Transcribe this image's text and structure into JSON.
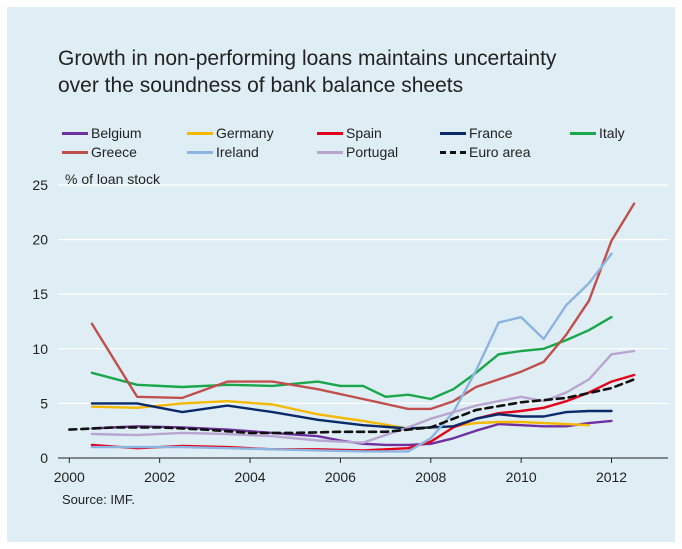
{
  "title_line1": "Growth in non-performing loans maintains uncertainty",
  "title_line2": "over the soundness of bank balance sheets",
  "unit_label": "% of loan stock",
  "source": "Source: IMF.",
  "chart_data": {
    "type": "line",
    "title": "Growth in non-performing loans maintains uncertainty over the soundness of bank balance sheets",
    "ylabel": "% of loan stock",
    "xlim": [
      1999.75,
      2013.25
    ],
    "ylim": [
      0,
      25
    ],
    "xticks": [
      "2000",
      "2002",
      "2004",
      "2006",
      "2008",
      "2010",
      "2012"
    ],
    "xtick_values": [
      2000,
      2002,
      2004,
      2006,
      2008,
      2010,
      2012
    ],
    "yticks": [
      "0",
      "5",
      "10",
      "15",
      "20",
      "25"
    ],
    "ytick_values": [
      0,
      5,
      10,
      15,
      20,
      25
    ],
    "grid": "horizontal",
    "legend_position": "top",
    "series": [
      {
        "name": "Belgium",
        "color": "#7030a0",
        "dash": false,
        "x": [
          2000.5,
          2001.5,
          2002.5,
          2003.5,
          2004.5,
          2005.5,
          2006,
          2006.5,
          2007,
          2007.5,
          2008,
          2008.5,
          2009,
          2009.5,
          2010,
          2010.5,
          2011,
          2011.5,
          2012
        ],
        "y": [
          2.7,
          2.9,
          2.8,
          2.6,
          2.3,
          2.0,
          1.6,
          1.3,
          1.2,
          1.2,
          1.3,
          1.8,
          2.5,
          3.1,
          3.0,
          2.9,
          2.9,
          3.2,
          3.4
        ]
      },
      {
        "name": "Germany",
        "color": "#f5b800",
        "dash": false,
        "x": [
          2000.5,
          2001.5,
          2002.5,
          2003.5,
          2004.5,
          2005.5,
          2006.5,
          2007.5,
          2008,
          2008.5,
          2009,
          2009.5,
          2010,
          2010.5,
          2011,
          2011.5
        ],
        "y": [
          4.7,
          4.6,
          5.0,
          5.2,
          4.9,
          4.0,
          3.4,
          2.7,
          2.8,
          2.9,
          3.2,
          3.3,
          3.3,
          3.2,
          3.1,
          3.0
        ]
      },
      {
        "name": "Spain",
        "color": "#e2001a",
        "dash": false,
        "x": [
          2000.5,
          2001.5,
          2002.5,
          2003.5,
          2004.5,
          2005.5,
          2006.5,
          2007.5,
          2008,
          2008.5,
          2009,
          2009.5,
          2010,
          2010.5,
          2011,
          2011.5,
          2012,
          2012.5
        ],
        "y": [
          1.2,
          0.9,
          1.1,
          1.0,
          0.8,
          0.8,
          0.7,
          0.9,
          1.5,
          2.8,
          3.6,
          4.1,
          4.3,
          4.6,
          5.2,
          6.0,
          7.0,
          7.6
        ]
      },
      {
        "name": "France",
        "color": "#0b2a6a",
        "dash": false,
        "x": [
          2000.5,
          2001.5,
          2002.5,
          2003.5,
          2004.5,
          2005.5,
          2006.5,
          2007.5,
          2008,
          2008.5,
          2009,
          2009.5,
          2010,
          2010.5,
          2011,
          2011.5,
          2012
        ],
        "y": [
          5.0,
          5.0,
          4.2,
          4.8,
          4.2,
          3.5,
          3.0,
          2.7,
          2.8,
          2.9,
          3.6,
          4.0,
          3.8,
          3.8,
          4.2,
          4.3,
          4.3
        ]
      },
      {
        "name": "Italy",
        "color": "#1aa64b",
        "dash": false,
        "x": [
          2000.5,
          2001.5,
          2002.5,
          2003.5,
          2004.5,
          2005,
          2005.5,
          2006,
          2006.5,
          2007,
          2007.5,
          2008,
          2008.5,
          2009,
          2009.5,
          2010,
          2010.5,
          2011,
          2011.5,
          2012
        ],
        "y": [
          7.8,
          6.7,
          6.5,
          6.7,
          6.6,
          6.8,
          7.0,
          6.6,
          6.6,
          5.6,
          5.8,
          5.4,
          6.3,
          7.8,
          9.5,
          9.8,
          10.0,
          10.8,
          11.7,
          12.9
        ]
      },
      {
        "name": "Greece",
        "color": "#c0504d",
        "dash": false,
        "x": [
          2000.5,
          2001.5,
          2002.5,
          2003.5,
          2004.5,
          2005.5,
          2006.5,
          2007.5,
          2008,
          2008.5,
          2009,
          2009.5,
          2010,
          2010.5,
          2011,
          2011.5,
          2012,
          2012.5
        ],
        "y": [
          12.3,
          5.6,
          5.5,
          7.0,
          7.0,
          6.3,
          5.4,
          4.5,
          4.5,
          5.2,
          6.5,
          7.2,
          7.9,
          8.8,
          11.3,
          14.4,
          19.9,
          23.3
        ]
      },
      {
        "name": "Ireland",
        "color": "#8cb4e0",
        "dash": false,
        "x": [
          2000.5,
          2001.5,
          2002.5,
          2003.5,
          2004.5,
          2005.5,
          2006.5,
          2007.5,
          2008,
          2008.5,
          2009,
          2009.5,
          2010,
          2010.5,
          2011,
          2011.5,
          2012
        ],
        "y": [
          1.0,
          1.0,
          1.0,
          0.9,
          0.8,
          0.7,
          0.6,
          0.6,
          1.8,
          4.2,
          8.0,
          12.4,
          12.9,
          10.9,
          14.0,
          16.0,
          18.7
        ]
      },
      {
        "name": "Portugal",
        "color": "#b8a5d0",
        "dash": false,
        "x": [
          2000.5,
          2001.5,
          2002.5,
          2003.5,
          2004.5,
          2005.5,
          2006.5,
          2007.5,
          2008,
          2008.5,
          2009,
          2009.5,
          2010,
          2010.5,
          2011,
          2011.5,
          2012,
          2012.5
        ],
        "y": [
          2.2,
          2.1,
          2.3,
          2.2,
          2.0,
          1.6,
          1.4,
          2.8,
          3.6,
          4.2,
          4.8,
          5.2,
          5.6,
          5.2,
          6.0,
          7.2,
          9.5,
          9.8
        ]
      },
      {
        "name": "Euro area",
        "color": "#111111",
        "dash": true,
        "x": [
          2000,
          2001,
          2002,
          2003,
          2004,
          2005,
          2006,
          2007,
          2008,
          2009,
          2010,
          2011,
          2012,
          2012.5
        ],
        "y": [
          2.6,
          2.8,
          2.8,
          2.6,
          2.3,
          2.3,
          2.4,
          2.4,
          2.8,
          4.4,
          5.1,
          5.5,
          6.4,
          7.2
        ]
      }
    ]
  }
}
